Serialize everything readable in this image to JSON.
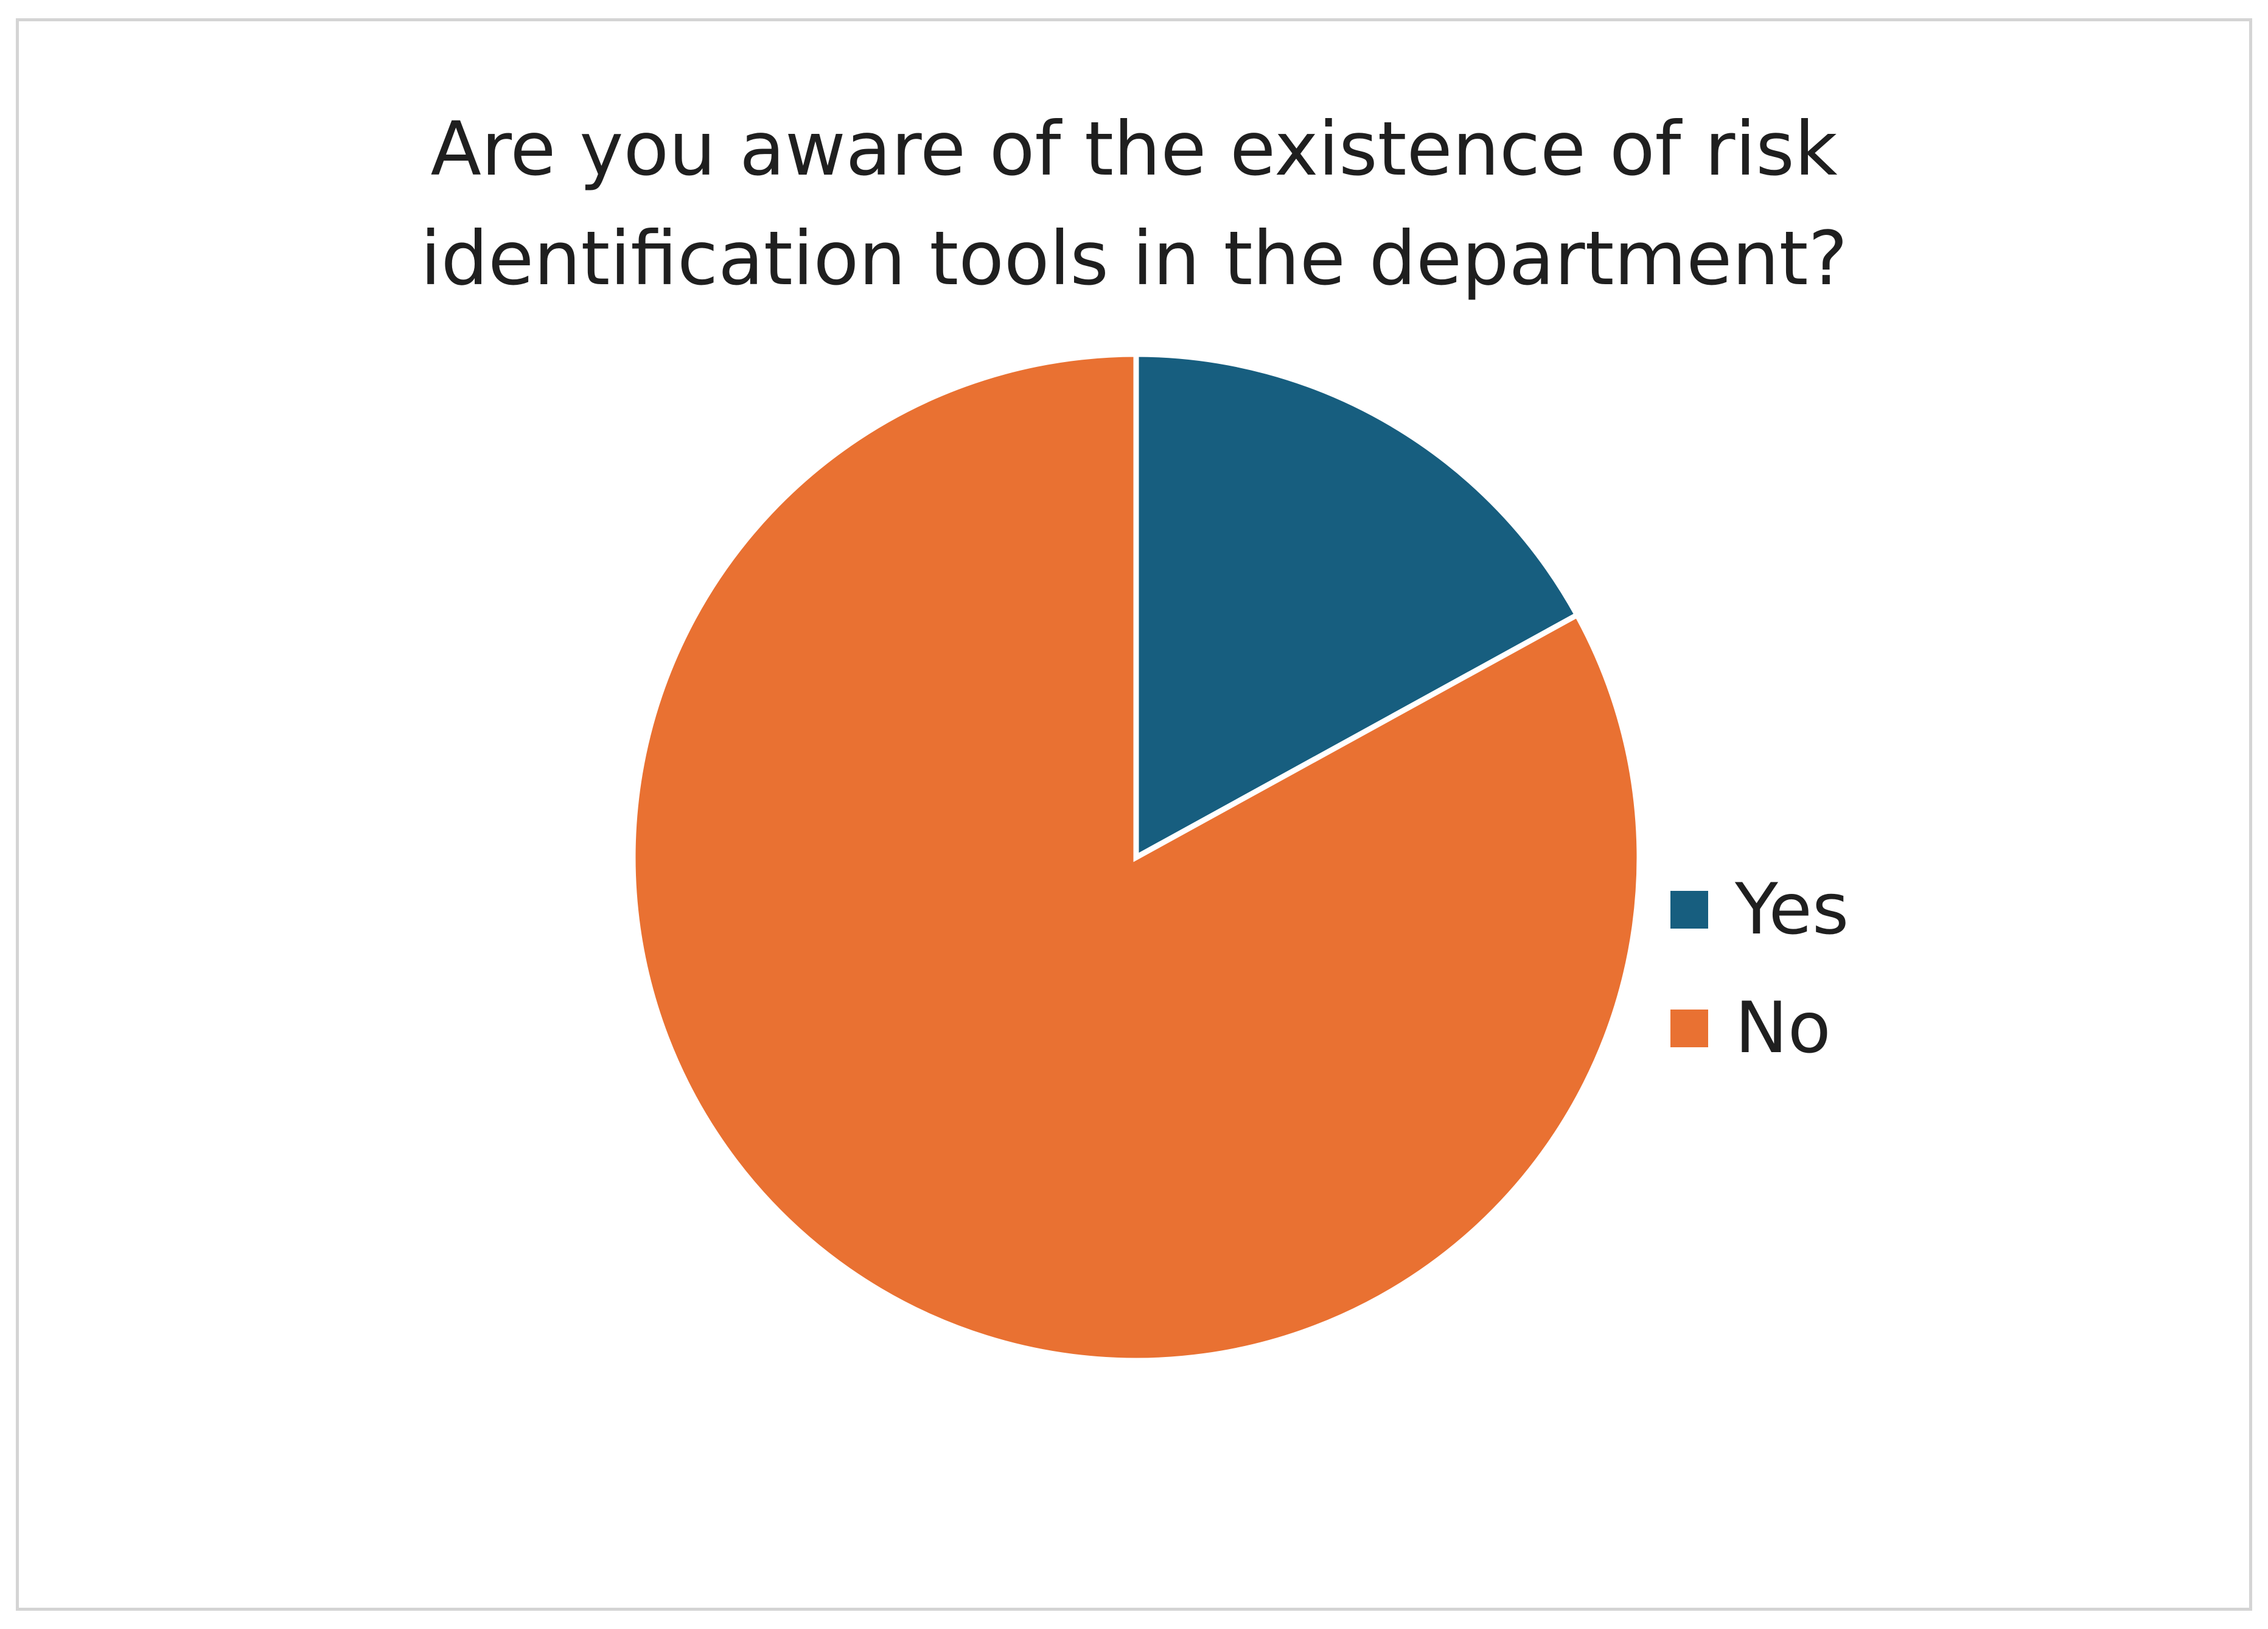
{
  "chart_data": {
    "type": "pie",
    "title": "Are you aware of the existence of risk identification tools in the department?",
    "title_lines": [
      "Are you aware of the existence of risk",
      "identification tools in the department?"
    ],
    "categories": [
      "Yes",
      "No"
    ],
    "values": [
      17,
      83
    ],
    "colors": [
      "#175e7f",
      "#e97132"
    ],
    "start_angle_deg": 0,
    "direction": "clockwise",
    "legend": {
      "position": "right",
      "entries": [
        {
          "label": "Yes",
          "color": "#175e7f"
        },
        {
          "label": "No",
          "color": "#e97132"
        }
      ]
    }
  }
}
